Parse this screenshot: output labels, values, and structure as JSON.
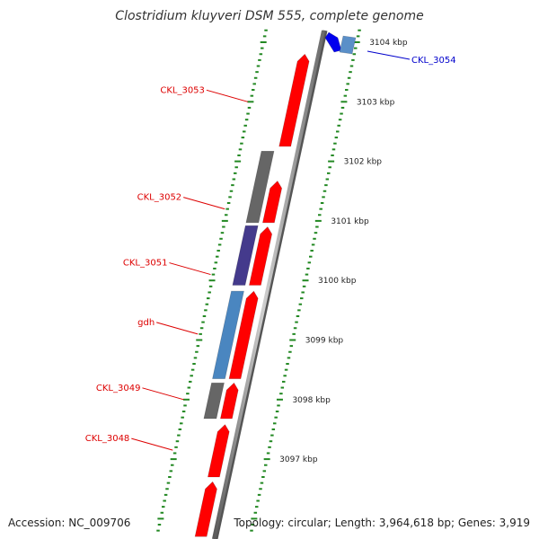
{
  "title": "Clostridium kluyveri DSM 555, complete genome",
  "footer": {
    "accession": "Accession: NC_009706",
    "stats": "Topology: circular; Length: 3,964,618 bp; Genes: 3,919"
  },
  "kbp_ticks": [
    {
      "label": "3104 kbp",
      "value": 3104
    },
    {
      "label": "3103 kbp",
      "value": 3103
    },
    {
      "label": "3102 kbp",
      "value": 3102
    },
    {
      "label": "3101 kbp",
      "value": 3101
    },
    {
      "label": "3100 kbp",
      "value": 3100
    },
    {
      "label": "3099 kbp",
      "value": 3099
    },
    {
      "label": "3098 kbp",
      "value": 3098
    },
    {
      "label": "3097 kbp",
      "value": 3097
    }
  ],
  "genes": [
    {
      "name": "",
      "strand": "forward",
      "start": 3103.89,
      "end": 3104.12,
      "color": "#0000ee"
    },
    {
      "name": "",
      "strand": "reverse",
      "start": 3103.89,
      "end": 3104.12,
      "color": "#5a8fc8"
    },
    {
      "name": "",
      "strand": "forward",
      "start": 3102.25,
      "end": 3103.8,
      "color": "#ff0000"
    },
    {
      "name": "",
      "strand": "reverse",
      "start": 3100.97,
      "end": 3102.17,
      "color": "#666666"
    },
    {
      "name": "",
      "strand": "forward",
      "start": 3100.97,
      "end": 3101.67,
      "color": "#ff0000"
    },
    {
      "name": "",
      "strand": "reverse",
      "start": 3099.92,
      "end": 3100.92,
      "color": "#443a8c"
    },
    {
      "name": "",
      "strand": "forward",
      "start": 3099.92,
      "end": 3100.9,
      "color": "#ff0000"
    },
    {
      "name": "",
      "strand": "reverse",
      "start": 3098.35,
      "end": 3099.82,
      "color": "#4a86c0"
    },
    {
      "name": "",
      "strand": "forward",
      "start": 3098.35,
      "end": 3099.82,
      "color": "#ff0000"
    },
    {
      "name": "",
      "strand": "reverse",
      "start": 3097.68,
      "end": 3098.28,
      "color": "#666666"
    },
    {
      "name": "",
      "strand": "forward",
      "start": 3097.68,
      "end": 3098.28,
      "color": "#ff0000"
    },
    {
      "name": "",
      "strand": "forward",
      "start": 3096.7,
      "end": 3097.58,
      "color": "#ff0000"
    },
    {
      "name": "",
      "strand": "forward",
      "start": 3095.7,
      "end": 3096.62,
      "color": "#ff0000"
    }
  ],
  "gene_labels": [
    {
      "text": "CKL_3054",
      "color": "#0000cc",
      "side": "right",
      "pos": 3103.8
    },
    {
      "text": "CKL_3053",
      "color": "#dd0000",
      "side": "left",
      "pos": 3103.0
    },
    {
      "text": "CKL_3052",
      "color": "#dd0000",
      "side": "left",
      "pos": 3101.2
    },
    {
      "text": "CKL_3051",
      "color": "#dd0000",
      "side": "left",
      "pos": 3100.1
    },
    {
      "text": "gdh",
      "color": "#dd0000",
      "side": "left",
      "pos": 3099.1
    },
    {
      "text": "CKL_3049",
      "color": "#dd0000",
      "side": "left",
      "pos": 3098.0
    },
    {
      "text": "CKL_3048",
      "color": "#dd0000",
      "side": "left",
      "pos": 3097.15
    }
  ],
  "colors": {
    "ruler": "#228822",
    "backbone": "#888888"
  }
}
